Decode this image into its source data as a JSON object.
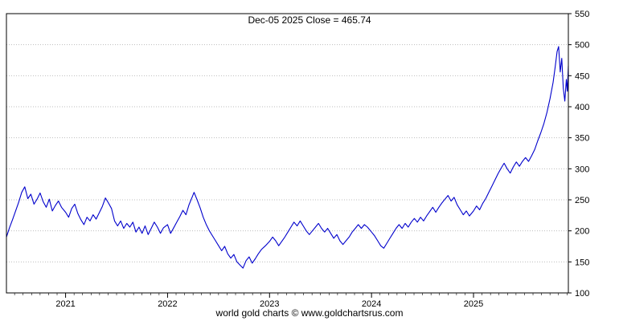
{
  "chart_data": {
    "type": "line",
    "title": "Dec-05  2025   Close = 465.74",
    "footer": "world gold charts © www.goldchartsrus.com",
    "line_color": "#0000cc",
    "grid_color": "#bdbdbd",
    "axis_color": "#000000",
    "xlim": [
      2020.42,
      2025.93
    ],
    "ylim": [
      100,
      550
    ],
    "x_ticks": [
      {
        "value": 2021,
        "label": "2021"
      },
      {
        "value": 2022,
        "label": "2022"
      },
      {
        "value": 2023,
        "label": "2023"
      },
      {
        "value": 2024,
        "label": "2024"
      },
      {
        "value": 2025,
        "label": "2025"
      }
    ],
    "y_ticks": [
      100,
      150,
      200,
      250,
      300,
      350,
      400,
      450,
      500,
      550
    ],
    "grid": "horizontal-dotted",
    "legend": "none",
    "series": [
      {
        "name": "close",
        "points": [
          [
            2020.42,
            190
          ],
          [
            2020.45,
            205
          ],
          [
            2020.48,
            218
          ],
          [
            2020.51,
            232
          ],
          [
            2020.54,
            246
          ],
          [
            2020.57,
            262
          ],
          [
            2020.6,
            271
          ],
          [
            2020.63,
            252
          ],
          [
            2020.66,
            259
          ],
          [
            2020.69,
            243
          ],
          [
            2020.72,
            251
          ],
          [
            2020.75,
            261
          ],
          [
            2020.78,
            247
          ],
          [
            2020.81,
            238
          ],
          [
            2020.84,
            251
          ],
          [
            2020.87,
            232
          ],
          [
            2020.9,
            241
          ],
          [
            2020.93,
            248
          ],
          [
            2020.96,
            238
          ],
          [
            2021.0,
            230
          ],
          [
            2021.03,
            222
          ],
          [
            2021.06,
            236
          ],
          [
            2021.09,
            243
          ],
          [
            2021.12,
            228
          ],
          [
            2021.15,
            218
          ],
          [
            2021.18,
            210
          ],
          [
            2021.21,
            222
          ],
          [
            2021.24,
            216
          ],
          [
            2021.27,
            226
          ],
          [
            2021.3,
            219
          ],
          [
            2021.33,
            229
          ],
          [
            2021.36,
            239
          ],
          [
            2021.39,
            253
          ],
          [
            2021.42,
            245
          ],
          [
            2021.45,
            236
          ],
          [
            2021.48,
            216
          ],
          [
            2021.51,
            208
          ],
          [
            2021.54,
            216
          ],
          [
            2021.57,
            204
          ],
          [
            2021.6,
            212
          ],
          [
            2021.63,
            206
          ],
          [
            2021.66,
            214
          ],
          [
            2021.69,
            198
          ],
          [
            2021.72,
            206
          ],
          [
            2021.75,
            196
          ],
          [
            2021.78,
            208
          ],
          [
            2021.81,
            194
          ],
          [
            2021.84,
            204
          ],
          [
            2021.87,
            214
          ],
          [
            2021.9,
            206
          ],
          [
            2021.93,
            196
          ],
          [
            2021.96,
            205
          ],
          [
            2022.0,
            210
          ],
          [
            2022.03,
            196
          ],
          [
            2022.06,
            205
          ],
          [
            2022.09,
            214
          ],
          [
            2022.12,
            223
          ],
          [
            2022.15,
            233
          ],
          [
            2022.18,
            226
          ],
          [
            2022.21,
            242
          ],
          [
            2022.24,
            254
          ],
          [
            2022.26,
            262
          ],
          [
            2022.29,
            250
          ],
          [
            2022.32,
            237
          ],
          [
            2022.35,
            222
          ],
          [
            2022.38,
            210
          ],
          [
            2022.41,
            200
          ],
          [
            2022.44,
            192
          ],
          [
            2022.47,
            184
          ],
          [
            2022.5,
            176
          ],
          [
            2022.53,
            168
          ],
          [
            2022.56,
            175
          ],
          [
            2022.59,
            163
          ],
          [
            2022.62,
            156
          ],
          [
            2022.65,
            162
          ],
          [
            2022.68,
            150
          ],
          [
            2022.71,
            145
          ],
          [
            2022.74,
            140
          ],
          [
            2022.77,
            152
          ],
          [
            2022.8,
            158
          ],
          [
            2022.83,
            148
          ],
          [
            2022.86,
            155
          ],
          [
            2022.89,
            163
          ],
          [
            2022.92,
            170
          ],
          [
            2022.96,
            176
          ],
          [
            2023.0,
            183
          ],
          [
            2023.03,
            190
          ],
          [
            2023.06,
            184
          ],
          [
            2023.09,
            176
          ],
          [
            2023.12,
            183
          ],
          [
            2023.15,
            190
          ],
          [
            2023.18,
            198
          ],
          [
            2023.21,
            206
          ],
          [
            2023.24,
            214
          ],
          [
            2023.27,
            208
          ],
          [
            2023.3,
            216
          ],
          [
            2023.33,
            208
          ],
          [
            2023.36,
            200
          ],
          [
            2023.39,
            194
          ],
          [
            2023.42,
            200
          ],
          [
            2023.45,
            206
          ],
          [
            2023.48,
            212
          ],
          [
            2023.51,
            204
          ],
          [
            2023.54,
            198
          ],
          [
            2023.57,
            204
          ],
          [
            2023.6,
            196
          ],
          [
            2023.63,
            188
          ],
          [
            2023.66,
            194
          ],
          [
            2023.69,
            184
          ],
          [
            2023.72,
            178
          ],
          [
            2023.75,
            184
          ],
          [
            2023.78,
            190
          ],
          [
            2023.81,
            198
          ],
          [
            2023.84,
            204
          ],
          [
            2023.87,
            210
          ],
          [
            2023.9,
            204
          ],
          [
            2023.93,
            210
          ],
          [
            2023.96,
            206
          ],
          [
            2024.0,
            198
          ],
          [
            2024.03,
            192
          ],
          [
            2024.06,
            184
          ],
          [
            2024.09,
            176
          ],
          [
            2024.12,
            172
          ],
          [
            2024.15,
            180
          ],
          [
            2024.18,
            188
          ],
          [
            2024.21,
            196
          ],
          [
            2024.24,
            204
          ],
          [
            2024.27,
            210
          ],
          [
            2024.3,
            204
          ],
          [
            2024.33,
            212
          ],
          [
            2024.36,
            206
          ],
          [
            2024.39,
            214
          ],
          [
            2024.42,
            220
          ],
          [
            2024.45,
            214
          ],
          [
            2024.48,
            222
          ],
          [
            2024.51,
            216
          ],
          [
            2024.54,
            224
          ],
          [
            2024.57,
            231
          ],
          [
            2024.6,
            238
          ],
          [
            2024.63,
            230
          ],
          [
            2024.66,
            238
          ],
          [
            2024.69,
            245
          ],
          [
            2024.72,
            251
          ],
          [
            2024.75,
            257
          ],
          [
            2024.78,
            248
          ],
          [
            2024.81,
            254
          ],
          [
            2024.84,
            242
          ],
          [
            2024.87,
            234
          ],
          [
            2024.9,
            226
          ],
          [
            2024.93,
            232
          ],
          [
            2024.96,
            224
          ],
          [
            2025.0,
            232
          ],
          [
            2025.03,
            240
          ],
          [
            2025.06,
            234
          ],
          [
            2025.09,
            244
          ],
          [
            2025.12,
            252
          ],
          [
            2025.15,
            262
          ],
          [
            2025.18,
            272
          ],
          [
            2025.21,
            282
          ],
          [
            2025.24,
            292
          ],
          [
            2025.27,
            301
          ],
          [
            2025.3,
            309
          ],
          [
            2025.33,
            300
          ],
          [
            2025.36,
            293
          ],
          [
            2025.39,
            303
          ],
          [
            2025.42,
            311
          ],
          [
            2025.45,
            304
          ],
          [
            2025.48,
            312
          ],
          [
            2025.51,
            318
          ],
          [
            2025.54,
            312
          ],
          [
            2025.57,
            321
          ],
          [
            2025.6,
            331
          ],
          [
            2025.63,
            345
          ],
          [
            2025.66,
            358
          ],
          [
            2025.69,
            373
          ],
          [
            2025.72,
            391
          ],
          [
            2025.75,
            413
          ],
          [
            2025.78,
            439
          ],
          [
            2025.8,
            463
          ],
          [
            2025.82,
            489
          ],
          [
            2025.835,
            497
          ],
          [
            2025.85,
            456
          ],
          [
            2025.865,
            478
          ],
          [
            2025.88,
            430
          ],
          [
            2025.895,
            409
          ],
          [
            2025.91,
            444
          ],
          [
            2025.92,
            425
          ],
          [
            2025.93,
            465.74
          ]
        ]
      }
    ]
  }
}
